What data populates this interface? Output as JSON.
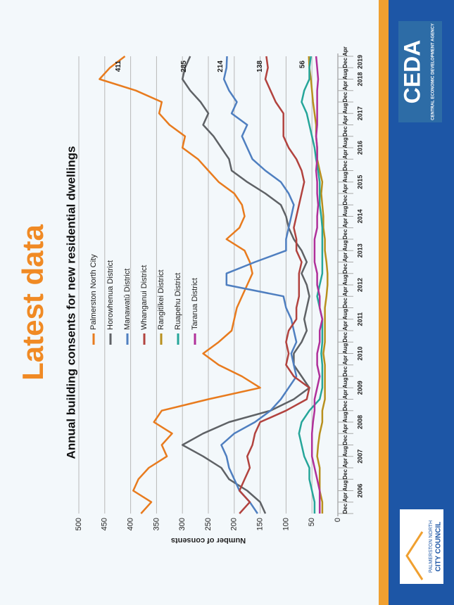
{
  "slide": {
    "heading": "Latest data",
    "ceda_logo": "CEDA",
    "ceda_subtitle": "CENTRAL ECONOMIC DEVELOPMENT AGENCY",
    "council_logo_top": "PALMERSTON NORTH",
    "council_logo_bottom": "CITY COUNCIL"
  },
  "chart_data": {
    "type": "line",
    "title": "Annual building consents for new residential dwellings",
    "y_label": "Number of consents",
    "categories": [
      "Dec",
      "Apr",
      "Aug",
      "Dec",
      "Apr",
      "Aug",
      "Dec",
      "Apr",
      "Aug",
      "Dec",
      "Apr",
      "Aug",
      "Dec",
      "Apr",
      "Aug",
      "Dec",
      "Apr",
      "Aug",
      "Dec",
      "Apr",
      "Aug",
      "Dec",
      "Apr",
      "Aug",
      "Dec",
      "Apr",
      "Aug",
      "Dec",
      "Apr",
      "Aug",
      "Dec",
      "Apr",
      "Aug",
      "Dec",
      "Apr",
      "Aug",
      "Dec",
      "Apr",
      "Aug",
      "Dec",
      "Apr"
    ],
    "years": [
      "2006",
      "2007",
      "2008",
      "2009",
      "2010",
      "2011",
      "2012",
      "2013",
      "2014",
      "2015",
      "2016",
      "2017",
      "2018",
      "2019"
    ],
    "ylim": [
      0,
      500
    ],
    "yticks": [
      0,
      50,
      100,
      150,
      200,
      250,
      300,
      350,
      400,
      450,
      500
    ],
    "grid": true,
    "legend": "inside",
    "series": [
      {
        "name": "Palmerston North City",
        "color": "#e87b1e",
        "label_last": true,
        "values": [
          380,
          360,
          395,
          385,
          365,
          330,
          340,
          320,
          355,
          340,
          250,
          150,
          185,
          230,
          260,
          230,
          205,
          200,
          195,
          185,
          175,
          165,
          170,
          180,
          215,
          190,
          180,
          185,
          200,
          230,
          250,
          270,
          300,
          295,
          325,
          345,
          340,
          390,
          460,
          440,
          411
        ]
      },
      {
        "name": "Horowhenua District",
        "color": "#5f6266",
        "label_last": true,
        "values": [
          140,
          150,
          175,
          210,
          225,
          260,
          300,
          260,
          210,
          130,
          85,
          55,
          70,
          85,
          85,
          70,
          60,
          65,
          60,
          55,
          60,
          70,
          60,
          70,
          85,
          95,
          100,
          110,
          140,
          175,
          205,
          210,
          225,
          240,
          260,
          250,
          265,
          285,
          300,
          295,
          285
        ]
      },
      {
        "name": "Manawatū District",
        "color": "#4f7fc0",
        "label_last": true,
        "values": [
          155,
          170,
          190,
          200,
          210,
          215,
          225,
          200,
          160,
          130,
          110,
          95,
          80,
          85,
          90,
          80,
          85,
          90,
          100,
          105,
          215,
          215,
          160,
          100,
          100,
          95,
          90,
          85,
          95,
          110,
          140,
          165,
          175,
          185,
          175,
          205,
          195,
          210,
          220,
          215,
          214
        ]
      },
      {
        "name": "Whanganui District",
        "color": "#b2433f",
        "label_last": true,
        "values": [
          190,
          170,
          190,
          180,
          170,
          175,
          165,
          160,
          150,
          100,
          60,
          55,
          85,
          100,
          95,
          100,
          95,
          80,
          80,
          75,
          75,
          75,
          70,
          80,
          80,
          85,
          80,
          75,
          70,
          65,
          70,
          80,
          95,
          105,
          105,
          105,
          120,
          130,
          140,
          135,
          138
        ]
      },
      {
        "name": "Rangitīkei District",
        "color": "#b8901e",
        "label_last": true,
        "values": [
          30,
          30,
          35,
          35,
          35,
          40,
          38,
          35,
          30,
          30,
          25,
          25,
          25,
          25,
          28,
          25,
          25,
          25,
          25,
          22,
          20,
          20,
          22,
          25,
          25,
          28,
          28,
          30,
          32,
          30,
          35,
          40,
          40,
          42,
          42,
          45,
          48,
          50,
          52,
          55,
          56
        ]
      },
      {
        "name": "Ruapehu District",
        "color": "#26a69a",
        "label_last": false,
        "values": [
          45,
          45,
          50,
          55,
          55,
          65,
          70,
          75,
          70,
          55,
          35,
          30,
          30,
          30,
          32,
          30,
          30,
          30,
          35,
          40,
          35,
          30,
          30,
          30,
          30,
          30,
          32,
          35,
          35,
          35,
          38,
          42,
          45,
          50,
          55,
          60,
          70,
          65,
          55,
          55,
          52
        ]
      },
      {
        "name": "Tararua District",
        "color": "#b0309a",
        "label_last": false,
        "values": [
          35,
          35,
          35,
          40,
          45,
          50,
          50,
          50,
          48,
          45,
          45,
          40,
          35,
          40,
          40,
          35,
          35,
          30,
          35,
          35,
          40,
          40,
          45,
          45,
          45,
          40,
          40,
          38,
          40,
          40,
          42,
          40,
          40,
          42,
          40,
          40,
          40,
          40,
          38,
          40,
          42
        ]
      }
    ]
  }
}
